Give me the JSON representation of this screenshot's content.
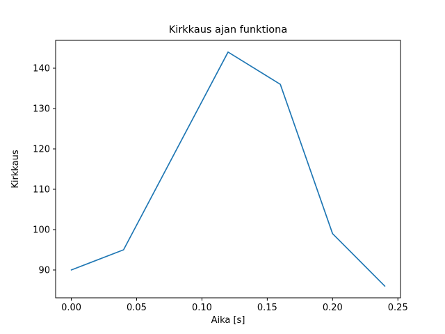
{
  "figure": {
    "background": "#ffffff"
  },
  "chart_data": {
    "type": "line",
    "title": "Kirkkaus ajan funktiona",
    "xlabel": "Aika [s]",
    "ylabel": "Kirkkaus",
    "x": [
      0.0,
      0.04,
      0.12,
      0.16,
      0.2,
      0.24
    ],
    "y": [
      90,
      95,
      144,
      136,
      99,
      86
    ],
    "series": [
      {
        "name": "Kirkkaus",
        "x": [
          0.0,
          0.04,
          0.12,
          0.16,
          0.2,
          0.24
        ],
        "values": [
          90,
          95,
          144,
          136,
          99,
          86
        ]
      }
    ],
    "line_color": "#1f77b4",
    "axes_edge_color": "#000000",
    "xlim": [
      -0.012,
      0.252
    ],
    "ylim": [
      83.1,
      146.9
    ],
    "xtick_values": [
      0.0,
      0.05,
      0.1,
      0.15,
      0.2,
      0.25
    ],
    "xtick_labels": [
      "0.00",
      "0.05",
      "0.10",
      "0.15",
      "0.20",
      "0.25"
    ],
    "ytick_values": [
      90,
      100,
      110,
      120,
      130,
      140
    ],
    "ytick_labels": [
      "90",
      "100",
      "110",
      "120",
      "130",
      "140"
    ],
    "grid": false,
    "legend_position": "none"
  }
}
